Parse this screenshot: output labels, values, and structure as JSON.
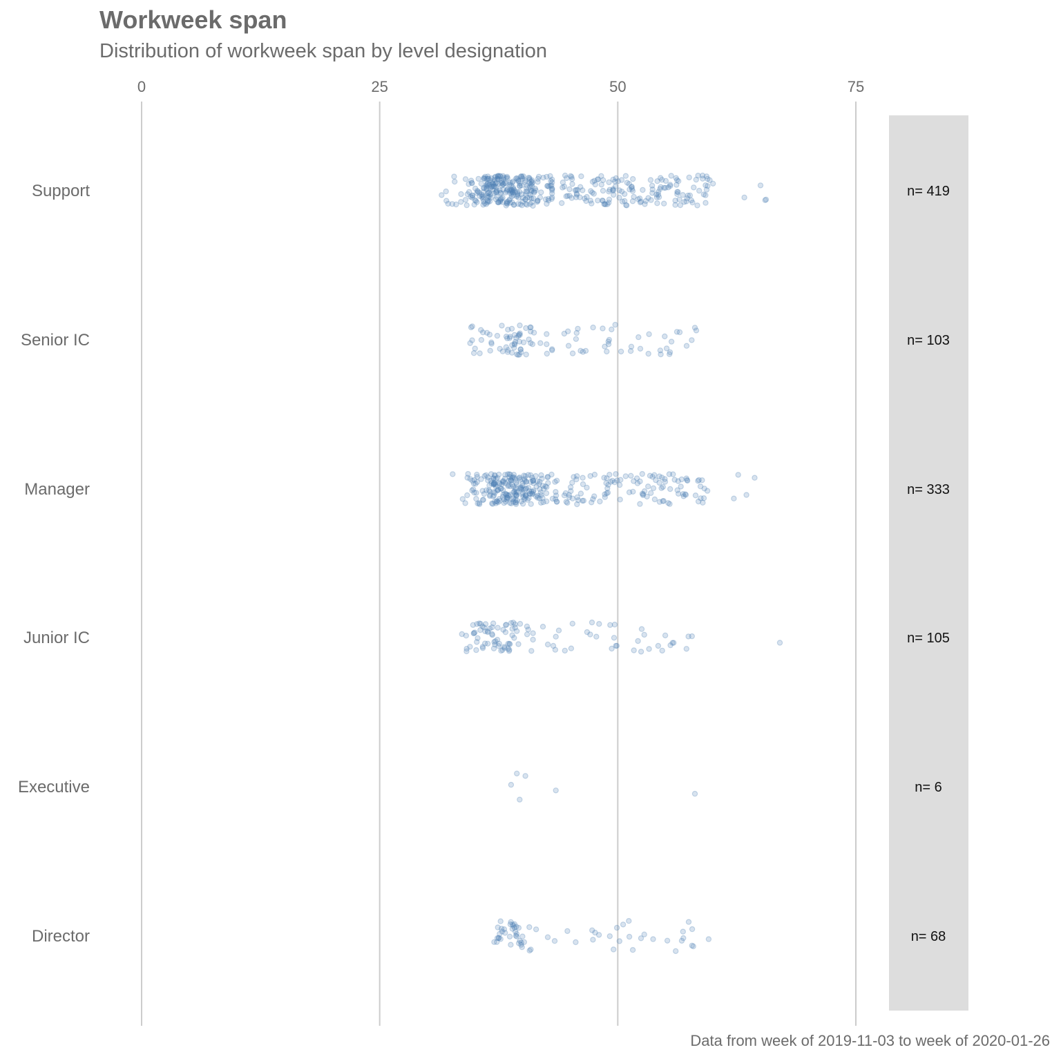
{
  "chart_data": {
    "type": "scatter",
    "title": "Workweek span",
    "subtitle": "Distribution of workweek span by level designation",
    "caption": "Data from week of 2019-11-03 to week of 2020-01-26",
    "xlabel": "",
    "ylabel": "",
    "x_axis_position": "top",
    "xlim": [
      0,
      75
    ],
    "x_ticks": [
      0,
      25,
      50,
      75
    ],
    "grid": "vertical major gridlines",
    "point_color": "#4f81b4",
    "point_opacity": 0.22,
    "count_panel_color": "#dddddd",
    "categories": [
      {
        "name": "Support",
        "n_label": "n= 419",
        "n": 419,
        "range": [
          31.5,
          67.0
        ],
        "core_range": [
          34.0,
          42.5
        ],
        "mode": 37.5
      },
      {
        "name": "Senior IC",
        "n_label": "n= 103",
        "n": 103,
        "range": [
          34.5,
          58.5
        ],
        "core_range": [
          34.5,
          42.5
        ],
        "mode": 38.5
      },
      {
        "name": "Manager",
        "n_label": "n= 333",
        "n": 333,
        "range": [
          32.5,
          69.0
        ],
        "core_range": [
          34.5,
          43.0
        ],
        "mode": 38.0
      },
      {
        "name": "Junior IC",
        "n_label": "n= 105",
        "n": 105,
        "range": [
          32.5,
          67.5
        ],
        "core_range": [
          34.0,
          40.5
        ],
        "mode": 38.0
      },
      {
        "name": "Executive",
        "n_label": "n= 6",
        "n": 6,
        "values": [
          38.8,
          39.7,
          39.4,
          40.3,
          43.5,
          58.1
        ]
      },
      {
        "name": "Director",
        "n_label": "n= 68",
        "n": 68,
        "range": [
          35.0,
          61.5
        ],
        "core_range": [
          36.5,
          41.0
        ],
        "mode": 38.5
      }
    ]
  }
}
